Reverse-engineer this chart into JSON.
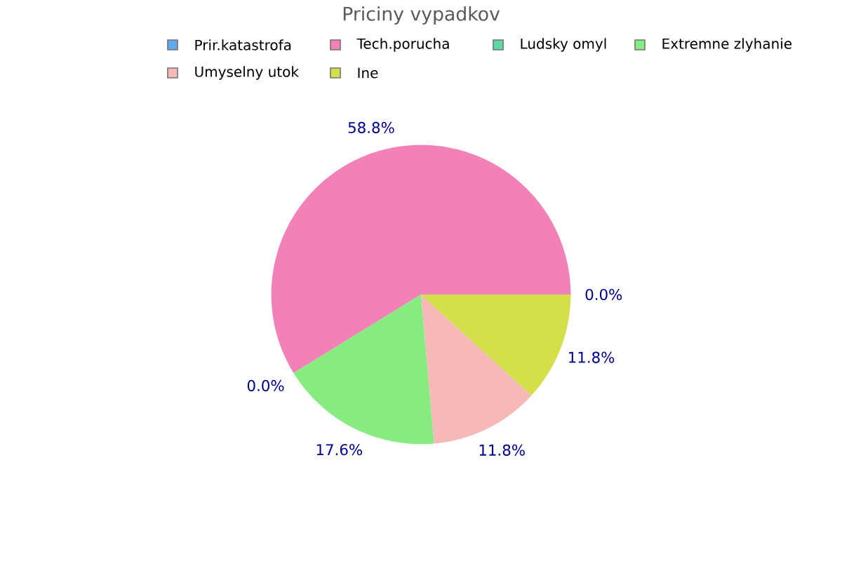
{
  "chart_data": {
    "type": "pie",
    "title": "Priciny vypadkov",
    "categories": [
      "Prir.katastrofa",
      "Tech.porucha",
      "Ludsky omyl",
      "Extremne zlyhanie",
      "Umyselny utok",
      "Ine"
    ],
    "values": [
      0.0,
      58.8,
      0.0,
      17.6,
      11.8,
      11.8
    ],
    "value_labels": [
      "0.0%",
      "58.8%",
      "0.0%",
      "17.6%",
      "11.8%",
      "11.8%"
    ],
    "colors": [
      "#64a8ec",
      "#f281b8",
      "#5fd8a4",
      "#86ec80",
      "#f7b8b8",
      "#d3e04a"
    ],
    "legend": "top"
  }
}
